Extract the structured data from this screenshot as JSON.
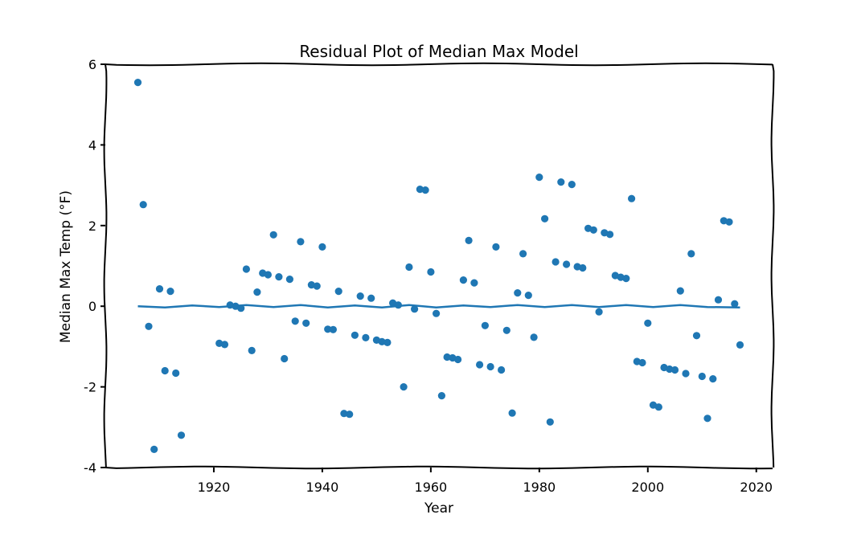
{
  "chart_data": {
    "type": "scatter",
    "title": "Residual Plot of Median Max Model",
    "xlabel": "Year",
    "ylabel": "Median Max Temp (°F)",
    "xlim": [
      1900,
      2023
    ],
    "ylim": [
      -4,
      6
    ],
    "x_ticks": [
      1920,
      1940,
      1960,
      1980,
      2000,
      2020
    ],
    "y_ticks": [
      -4,
      -2,
      0,
      2,
      4,
      6
    ],
    "x_tick_labels": [
      "1920",
      "1940",
      "1960",
      "1980",
      "2000",
      "2020"
    ],
    "y_tick_labels": [
      "-4",
      "-2",
      "0",
      "2",
      "4",
      "6"
    ],
    "grid": false,
    "color": "#1f77b4",
    "series": [
      {
        "type": "scatter",
        "x": [
          1906,
          1907,
          1908,
          1909,
          1910,
          1911,
          1912,
          1913,
          1914,
          1921,
          1922,
          1923,
          1924,
          1925,
          1926,
          1927,
          1928,
          1929,
          1930,
          1931,
          1932,
          1933,
          1934,
          1935,
          1936,
          1937,
          1938,
          1939,
          1940,
          1941,
          1942,
          1943,
          1944,
          1945,
          1946,
          1947,
          1948,
          1949,
          1950,
          1951,
          1952,
          1953,
          1954,
          1955,
          1956,
          1957,
          1958,
          1959,
          1960,
          1961,
          1962,
          1963,
          1964,
          1965,
          1966,
          1967,
          1968,
          1969,
          1970,
          1971,
          1972,
          1973,
          1974,
          1975,
          1976,
          1977,
          1978,
          1979,
          1980,
          1981,
          1982,
          1983,
          1984,
          1985,
          1986,
          1987,
          1988,
          1989,
          1990,
          1991,
          1992,
          1993,
          1994,
          1995,
          1996,
          1997,
          1998,
          1999,
          2000,
          2001,
          2002,
          2003,
          2004,
          2005,
          2006,
          2007,
          2008,
          2009,
          2010,
          2011,
          2012,
          2013,
          2014,
          2015,
          2016,
          2017
        ],
        "y": [
          5.55,
          2.52,
          -0.5,
          -3.55,
          0.43,
          -1.6,
          0.37,
          -1.66,
          -3.2,
          -0.92,
          -0.95,
          0.03,
          0.0,
          -0.05,
          0.92,
          -1.1,
          0.35,
          0.82,
          0.78,
          1.77,
          0.73,
          -1.3,
          0.67,
          -0.37,
          1.6,
          -0.42,
          0.53,
          0.5,
          1.47,
          -0.57,
          -0.58,
          0.37,
          -2.66,
          -2.68,
          -0.72,
          0.25,
          -0.78,
          0.2,
          -0.84,
          -0.88,
          -0.9,
          0.08,
          0.03,
          -2.0,
          0.97,
          -0.07,
          2.9,
          2.88,
          0.85,
          -0.18,
          -2.22,
          -1.26,
          -1.28,
          -1.32,
          0.65,
          1.63,
          0.58,
          -1.45,
          -0.48,
          -1.5,
          1.47,
          -1.58,
          -0.6,
          -2.65,
          0.33,
          1.3,
          0.27,
          -0.77,
          3.2,
          2.17,
          -2.87,
          1.1,
          3.08,
          1.04,
          3.02,
          0.98,
          0.95,
          1.93,
          1.89,
          -0.14,
          1.82,
          1.78,
          0.76,
          0.72,
          0.69,
          2.67,
          -1.37,
          -1.4,
          -0.42,
          -2.45,
          -2.5,
          -1.52,
          -1.56,
          -1.58,
          0.38,
          -1.67,
          1.3,
          -0.73,
          -1.74,
          -2.78,
          -1.8,
          0.16,
          2.12,
          2.09,
          0.06,
          -0.96
        ]
      },
      {
        "type": "line",
        "x": [
          1906,
          1911,
          1916,
          1921,
          1926,
          1931,
          1936,
          1941,
          1946,
          1951,
          1956,
          1961,
          1966,
          1971,
          1976,
          1981,
          1986,
          1991,
          1996,
          2001,
          2006,
          2011,
          2017
        ],
        "y": [
          0.0,
          -0.03,
          0.02,
          -0.02,
          0.03,
          -0.02,
          0.03,
          -0.03,
          0.02,
          -0.03,
          0.03,
          -0.03,
          0.02,
          -0.02,
          0.03,
          -0.02,
          0.03,
          -0.02,
          0.03,
          -0.02,
          0.03,
          -0.02,
          -0.03
        ]
      }
    ]
  }
}
